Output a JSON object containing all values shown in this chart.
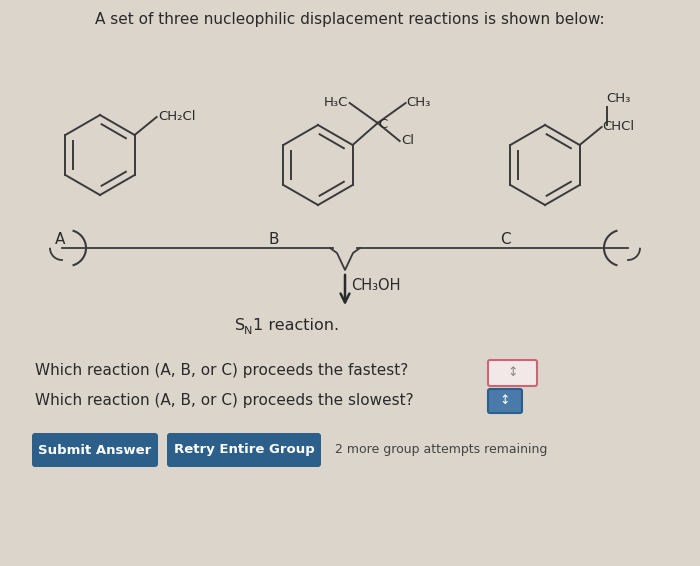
{
  "title": "A set of three nucleophilic displacement reactions is shown below:",
  "background_color": "#dbd5cc",
  "text_color": "#2a2a2a",
  "mol_line_color": "#3a3a3a",
  "molecule_A_substituent": "CH₂Cl",
  "molecule_B_sub_top_left": "H₃C",
  "molecule_B_sub_top_right": "CH₃",
  "molecule_B_sub_center": "C",
  "molecule_B_sub_bottom": "Cl",
  "molecule_C_sub_top": "CH₃",
  "molecule_C_sub_bottom": "CHCl",
  "arrow_label": "CH₃OH",
  "sn1_S": "S",
  "sn1_N": "N",
  "sn1_rest": "1 reaction.",
  "question1": "Which reaction (A, B, or C) proceeds the fastest?",
  "question2": "Which reaction (A, B, or C) proceeds the slowest?",
  "button1_text": "Submit Answer",
  "button2_text": "Retry Entire Group",
  "remaining_text": "2 more group attempts remaining",
  "button_color": "#2c5f8a",
  "button_text_color": "#ffffff",
  "answer_box1_border": "#cc6677",
  "answer_box2_border": "#2c5f8a",
  "label_A": "A",
  "label_B": "B",
  "label_C": "C"
}
